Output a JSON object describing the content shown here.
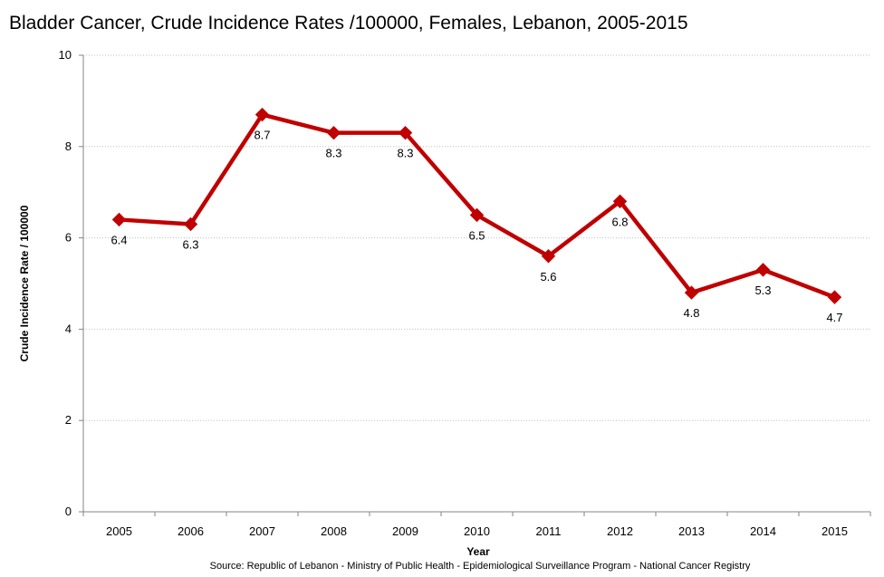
{
  "title": "Bladder Cancer, Crude Incidence Rates /100000,  Females, Lebanon, 2005-2015",
  "source": "Source:  Republic of Lebanon - Ministry of Public Health - Epidemiological Surveillance Program - National Cancer Registry",
  "chart_data": {
    "type": "line",
    "title": "Bladder Cancer, Crude Incidence Rates /100000,  Females, Lebanon, 2005-2015",
    "xlabel": "Year",
    "ylabel": "Crude Incidence Rate / 100000",
    "categories": [
      "2005",
      "2006",
      "2007",
      "2008",
      "2009",
      "2010",
      "2011",
      "2012",
      "2013",
      "2014",
      "2015"
    ],
    "series": [
      {
        "values": [
          6.4,
          6.3,
          8.7,
          8.3,
          8.3,
          6.5,
          5.6,
          6.8,
          4.8,
          5.3,
          4.7
        ],
        "labels": [
          "6.4",
          "6.3",
          "8.7",
          "8.3",
          "8.3",
          "6.5",
          "5.6",
          "6.8",
          "4.8",
          "5.3",
          "4.7"
        ],
        "color": "#C00000"
      }
    ],
    "ylim": [
      0,
      10
    ],
    "yticks": [
      "0",
      "2",
      "4",
      "6",
      "8",
      "10"
    ],
    "grid": true,
    "legend": "none",
    "marker": "diamond",
    "gridline_color": "#bfbfbf",
    "axis_color": "#868686"
  }
}
